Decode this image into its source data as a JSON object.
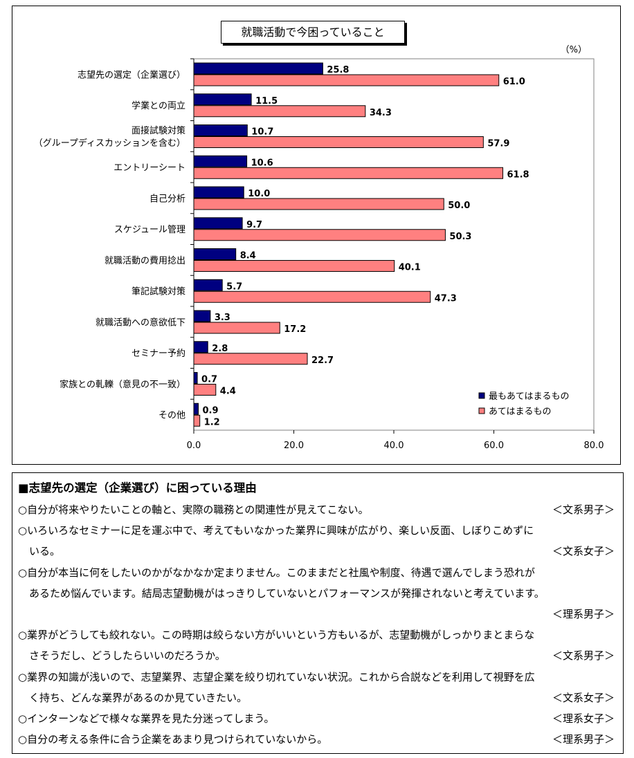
{
  "chart_data": {
    "type": "bar",
    "orientation": "horizontal",
    "title": "就職活動で今困っていること",
    "unit_label": "（%）",
    "categories": [
      "志望先の選定（企業選び）",
      "学業との両立",
      "面接試験対策\n（グループディスカッションを含む）",
      "エントリーシート",
      "自己分析",
      "スケジュール管理",
      "就職活動の費用捻出",
      "筆記試験対策",
      "就職活動への意欲低下",
      "セミナー予約",
      "家族との軋轢（意見の不一致）",
      "その他"
    ],
    "series": [
      {
        "name": "最もあてはまるもの",
        "color": "#000080",
        "values": [
          25.8,
          11.5,
          10.7,
          10.6,
          10.0,
          9.7,
          8.4,
          5.7,
          3.3,
          2.8,
          0.7,
          0.9
        ]
      },
      {
        "name": "あてはまるもの",
        "color": "#ff8080",
        "values": [
          61.0,
          34.3,
          57.9,
          61.8,
          50.0,
          50.3,
          40.1,
          47.3,
          17.2,
          22.7,
          4.4,
          1.2
        ]
      }
    ],
    "xlim": [
      0,
      80
    ],
    "xticks": [
      "0.0",
      "20.0",
      "40.0",
      "60.0",
      "80.0"
    ],
    "grid": false,
    "legend_position": "bottom-right"
  },
  "comments": {
    "heading": "■志望先の選定（企業選び）に困っている理由",
    "lines": [
      {
        "text": "○自分が将来やりたいことの軸と、実際の職務との関連性が見えてこない。",
        "tag": "＜文系男子＞"
      },
      {
        "text": "○いろいろなセミナーに足を運ぶ中で、考えてもいなかった業界に興味が広がり、楽しい反面、しぼりこめずに",
        "tag": ""
      },
      {
        "text": "いる。",
        "tag": "＜文系女子＞",
        "indent": true
      },
      {
        "text": "○自分が本当に何をしたいのかがなかなか定まりません。このままだと社風や制度、待遇で選んでしまう恐れが",
        "tag": ""
      },
      {
        "text": "あるため悩んでいます。結局志望動機がはっきりしていないとパフォーマンスが発揮されないと考えています。",
        "tag": "",
        "indent": true
      },
      {
        "text": "",
        "tag": "＜理系男子＞"
      },
      {
        "text": "○業界がどうしても絞れない。この時期は絞らない方がいいという方もいるが、志望動機がしっかりまとまらな",
        "tag": ""
      },
      {
        "text": "さそうだし、どうしたらいいのだろうか。",
        "tag": "＜文系男子＞",
        "indent": true
      },
      {
        "text": "○業界の知識が浅いので、志望業界、志望企業を絞り切れていない状況。これから合説などを利用して視野を広",
        "tag": ""
      },
      {
        "text": "く持ち、どんな業界があるのか見ていきたい。",
        "tag": "＜文系女子＞",
        "indent": true
      },
      {
        "text": "○インターンなどで様々な業界を見た分迷ってしまう。",
        "tag": "＜理系女子＞"
      },
      {
        "text": "○自分の考える条件に合う企業をあまり見つけられていないから。",
        "tag": "＜理系男子＞"
      }
    ]
  }
}
